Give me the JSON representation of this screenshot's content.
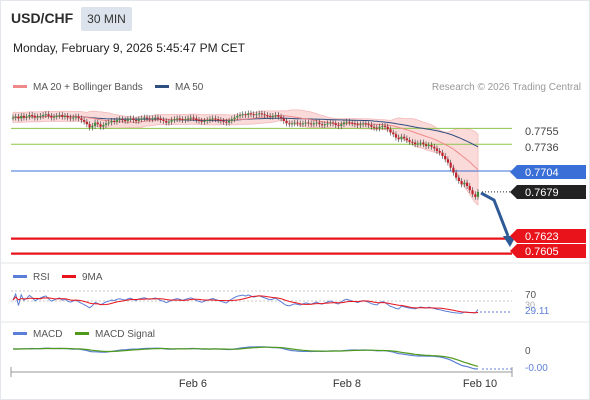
{
  "header": {
    "symbol": "USD/CHF",
    "timeframe": "30 MIN",
    "datetime": "Monday, February 9, 2026 5:45:47 PM CET"
  },
  "legend": {
    "ma20_label": "MA 20 + Bollinger Bands",
    "ma50_label": "MA 50",
    "copyright": "Research © 2026 Trading Central"
  },
  "colors": {
    "ma20": "#f08a8a",
    "ma50": "#2f4f7f",
    "bollinger_fill": "#fbdada",
    "green_level": "#8dc54b",
    "blue_level": "#3a6fd8",
    "red_level": "#e8131b",
    "candle_up": "#3f8f3f",
    "candle_down": "#c0202b",
    "arrow": "#2f5a96",
    "rsi": "#5b7fd6",
    "rsi_ma": "#e8131b",
    "macd": "#5b7fd6",
    "macd_signal": "#4f9a1a"
  },
  "chart_data": [
    {
      "type": "candlestick",
      "title": "USD/CHF 30 MIN",
      "x_tick_labels": [
        "Feb 6",
        "Feb 8",
        "Feb 10"
      ],
      "ylim": [
        0.7595,
        0.7795
      ],
      "levels": [
        {
          "value": 0.7755,
          "label": "0.7755",
          "kind": "resistance",
          "color": "green"
        },
        {
          "value": 0.7736,
          "label": "0.7736",
          "kind": "resistance",
          "color": "green"
        },
        {
          "value": 0.7704,
          "label": "0.7704",
          "kind": "pivot",
          "color": "blue"
        },
        {
          "value": 0.7679,
          "label": "0.7679",
          "kind": "last_price",
          "color": "dark"
        },
        {
          "value": 0.7623,
          "label": "0.7623",
          "kind": "target",
          "color": "red"
        },
        {
          "value": 0.7605,
          "label": "0.7605",
          "kind": "target",
          "color": "red"
        }
      ],
      "close": [
        0.7768,
        0.7769,
        0.7767,
        0.777,
        0.7768,
        0.7769,
        0.7771,
        0.777,
        0.7768,
        0.7769,
        0.777,
        0.7771,
        0.7772,
        0.777,
        0.7768,
        0.7769,
        0.777,
        0.7771,
        0.7769,
        0.777,
        0.7768,
        0.7767,
        0.7768,
        0.7769,
        0.7767,
        0.7765,
        0.7763,
        0.776,
        0.7756,
        0.7758,
        0.7762,
        0.776,
        0.7757,
        0.7759,
        0.7761,
        0.7762,
        0.7764,
        0.7763,
        0.7765,
        0.7766,
        0.7765,
        0.7764,
        0.7766,
        0.7767,
        0.7765,
        0.7764,
        0.7766,
        0.7767,
        0.7768,
        0.7767,
        0.7766,
        0.7767,
        0.7768,
        0.7767,
        0.7765,
        0.7764,
        0.7762,
        0.7763,
        0.7765,
        0.7766,
        0.7767,
        0.7766,
        0.7765,
        0.7766,
        0.7767,
        0.7768,
        0.7767,
        0.7765,
        0.7764,
        0.7763,
        0.7764,
        0.7765,
        0.7766,
        0.7767,
        0.7766,
        0.7765,
        0.7764,
        0.7763,
        0.7762,
        0.7764,
        0.7766,
        0.7768,
        0.777,
        0.7771,
        0.7772,
        0.7771,
        0.7773,
        0.7772,
        0.7771,
        0.7772,
        0.7773,
        0.7772,
        0.7771,
        0.777,
        0.7769,
        0.777,
        0.7771,
        0.7769,
        0.7767,
        0.7764,
        0.7761,
        0.776,
        0.7761,
        0.7762,
        0.7761,
        0.776,
        0.7761,
        0.7762,
        0.7761,
        0.776,
        0.7761,
        0.7762,
        0.776,
        0.7759,
        0.776,
        0.7761,
        0.7762,
        0.7761,
        0.7759,
        0.7758,
        0.776,
        0.7762,
        0.7763,
        0.7762,
        0.7761,
        0.776,
        0.7759,
        0.776,
        0.7761,
        0.776,
        0.7759,
        0.7757,
        0.7756,
        0.7755,
        0.7757,
        0.7758,
        0.7757,
        0.7754,
        0.775,
        0.7748,
        0.7744,
        0.7742,
        0.7745,
        0.7743,
        0.7741,
        0.7739,
        0.7738,
        0.7736,
        0.7737,
        0.7738,
        0.7736,
        0.7734,
        0.7735,
        0.7733,
        0.7731,
        0.7728,
        0.7726,
        0.7722,
        0.7718,
        0.7714,
        0.7708,
        0.7702,
        0.7696,
        0.7692,
        0.7688,
        0.769,
        0.7686,
        0.7681,
        0.7676,
        0.7673,
        0.7679
      ]
    },
    {
      "type": "line",
      "title": "RSI",
      "series": [
        {
          "name": "RSI"
        },
        {
          "name": "9MA"
        }
      ],
      "levels": [
        70,
        30
      ],
      "tick_labels": [
        "70",
        "30"
      ],
      "last_value": 29.11
    },
    {
      "type": "line",
      "title": "MACD",
      "series": [
        {
          "name": "MACD"
        },
        {
          "name": "MACD Signal"
        }
      ],
      "tick_labels": [
        "0"
      ],
      "last_value": -0.0
    }
  ],
  "labels": {
    "rsi_legend": "RSI",
    "rsi_ma_legend": "9MA",
    "rsi_70": "70",
    "rsi_30": "30",
    "rsi_last": "29.11",
    "macd_legend": "MACD",
    "macd_signal_legend": "MACD Signal",
    "macd_zero": "0",
    "macd_last": "-0.00"
  }
}
